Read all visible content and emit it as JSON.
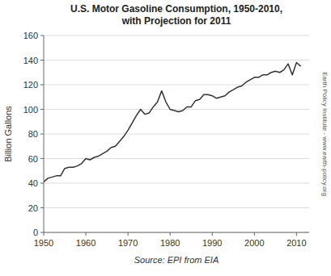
{
  "chart_data": {
    "type": "line",
    "title": "U.S. Motor Gasoline Consumption, 1950-2010,\nwith Projection for 2011",
    "x_label": "Source: EPI from EIA",
    "y_label": "Billion Gallons",
    "annotations": [
      "Earth Policy Institute - www.earth-policy.org"
    ],
    "color": "#333333",
    "x": [
      1950,
      1951,
      1952,
      1953,
      1954,
      1955,
      1956,
      1957,
      1958,
      1959,
      1960,
      1961,
      1962,
      1963,
      1964,
      1965,
      1966,
      1967,
      1968,
      1969,
      1970,
      1971,
      1972,
      1973,
      1974,
      1975,
      1976,
      1977,
      1978,
      1979,
      1980,
      1981,
      1982,
      1983,
      1984,
      1985,
      1986,
      1987,
      1988,
      1989,
      1990,
      1991,
      1992,
      1993,
      1994,
      1995,
      1996,
      1997,
      1998,
      1999,
      2000,
      2001,
      2002,
      2003,
      2004,
      2005,
      2006,
      2007,
      2008,
      2009,
      2010,
      2011
    ],
    "values": [
      41,
      44,
      45,
      46,
      46,
      52,
      53,
      53,
      54,
      56,
      60,
      59,
      61,
      62,
      64,
      66,
      69,
      70,
      74,
      78,
      83,
      89,
      95,
      100,
      96,
      97,
      102,
      106,
      115,
      106,
      100,
      99,
      98,
      99,
      102,
      102,
      107,
      108,
      112,
      112,
      111,
      109,
      110,
      111,
      114,
      116,
      118,
      119,
      122,
      124,
      126,
      126,
      128,
      128,
      130,
      131,
      130,
      132,
      137,
      128,
      138,
      135
    ],
    "xlim": [
      1950,
      2013
    ],
    "ylim": [
      0,
      160
    ],
    "xticks": [
      1950,
      1960,
      1970,
      1980,
      1990,
      2000,
      2010
    ],
    "yticks": [
      0,
      20,
      40,
      60,
      80,
      100,
      120,
      140,
      160
    ],
    "grid": true
  }
}
